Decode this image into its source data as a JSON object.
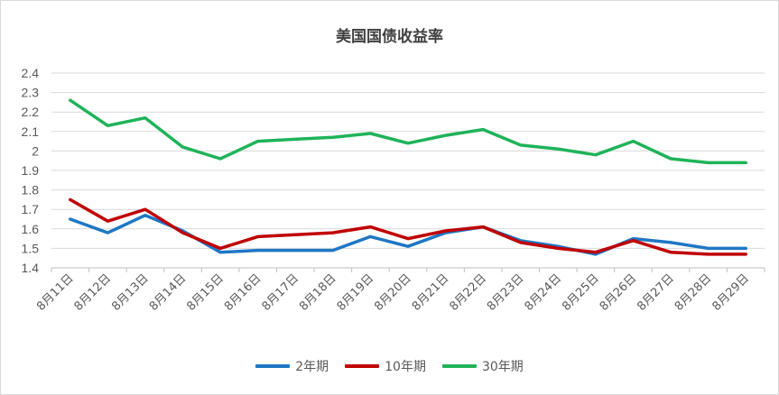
{
  "chart_data": {
    "type": "line",
    "title": "美国国债收益率",
    "categories": [
      "8月11日",
      "8月12日",
      "8月13日",
      "8月14日",
      "8月15日",
      "8月16日",
      "8月17日",
      "8月18日",
      "8月19日",
      "8月20日",
      "8月21日",
      "8月22日",
      "8月23日",
      "8月24日",
      "8月25日",
      "8月26日",
      "8月27日",
      "8月28日",
      "8月29日"
    ],
    "ylim": [
      1.4,
      2.4
    ],
    "yticks": [
      "1.4",
      "1.5",
      "1.6",
      "1.7",
      "1.8",
      "1.9",
      "2",
      "2.1",
      "2.2",
      "2.3",
      "2.4"
    ],
    "grid": true,
    "legend_position": "bottom",
    "series": [
      {
        "name": "2年期",
        "color": "#1f77c4",
        "values": [
          1.65,
          1.58,
          1.67,
          1.59,
          1.48,
          1.49,
          1.49,
          1.49,
          1.56,
          1.51,
          1.58,
          1.61,
          1.54,
          1.51,
          1.47,
          1.55,
          1.53,
          1.5,
          1.5
        ]
      },
      {
        "name": "10年期",
        "color": "#c00000",
        "values": [
          1.75,
          1.64,
          1.7,
          1.58,
          1.5,
          1.56,
          1.57,
          1.58,
          1.61,
          1.55,
          1.59,
          1.61,
          1.53,
          1.5,
          1.48,
          1.54,
          1.48,
          1.47,
          1.47
        ]
      },
      {
        "name": "30年期",
        "color": "#1fb35a",
        "values": [
          2.26,
          2.13,
          2.17,
          2.02,
          1.96,
          2.05,
          2.06,
          2.07,
          2.09,
          2.04,
          2.08,
          2.11,
          2.03,
          2.01,
          1.98,
          2.05,
          1.96,
          1.94,
          1.94
        ]
      }
    ]
  }
}
